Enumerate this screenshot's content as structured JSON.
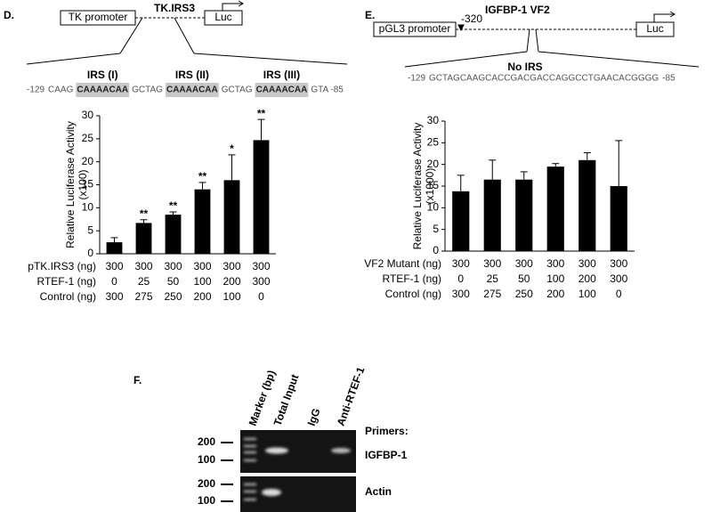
{
  "panel_d": {
    "label": "D.",
    "diagram": {
      "promoter": "TK promoter",
      "construct": "TK.IRS3",
      "reporter": "Luc",
      "sequence": [
        {
          "text": "-129"
        },
        {
          "text": "CAAG"
        },
        {
          "text": "CAAAACAA",
          "label": "IRS (I)"
        },
        {
          "text": "GCTAG"
        },
        {
          "text": "CAAAACAA",
          "label": "IRS (II)"
        },
        {
          "text": "GCTAG"
        },
        {
          "text": "CAAAACAA",
          "label": "IRS (III)"
        },
        {
          "text": "GTA -85"
        }
      ]
    }
  },
  "panel_e": {
    "label": "E.",
    "diagram": {
      "promoter": "pGL3 promoter",
      "position": "-320",
      "construct": "IGFBP-1 VF2",
      "reporter": "Luc",
      "note": "No IRS",
      "sequence": [
        {
          "text": "-129"
        },
        {
          "text": "GCTAGCAAGCACCGACGACCAGGCCTGAACACGGGG"
        },
        {
          "text": "-85"
        }
      ]
    }
  },
  "chart_data": [
    {
      "type": "bar",
      "y_label": [
        "Relative Luciferase Activity",
        "(x100)"
      ],
      "color": "#000000",
      "values": [
        2.5,
        6.7,
        8.5,
        14,
        16,
        24.7
      ],
      "errors": [
        1,
        0.7,
        0.6,
        1.5,
        5.5,
        4.5
      ],
      "significance": [
        null,
        "**",
        "**",
        "**",
        "*",
        "**"
      ],
      "ylim": [
        0,
        30
      ],
      "yticks": [
        0,
        5,
        10,
        15,
        20,
        25,
        30
      ],
      "table_rows": [
        {
          "label": "pTK.IRS3 (ng)",
          "values": [
            300,
            300,
            300,
            300,
            300,
            300
          ]
        },
        {
          "label": "RTEF-1 (ng)",
          "values": [
            0,
            25,
            50,
            100,
            200,
            300
          ]
        },
        {
          "label": "Control (ng)",
          "values": [
            300,
            275,
            250,
            200,
            100,
            0
          ]
        }
      ]
    },
    {
      "type": "bar",
      "y_label": [
        "Relative Luciferase Activity",
        "(x1000)"
      ],
      "color": "#000000",
      "values": [
        13.8,
        16.5,
        16.5,
        19.5,
        21,
        15
      ],
      "errors": [
        3.7,
        4.5,
        1.8,
        0.7,
        1.7,
        10.5
      ],
      "ylim": [
        0,
        30
      ],
      "yticks": [
        0,
        5,
        10,
        15,
        20,
        25,
        30
      ],
      "table_rows": [
        {
          "label": "VF2 Mutant (ng)",
          "values": [
            300,
            300,
            300,
            300,
            300,
            300
          ]
        },
        {
          "label": "RTEF-1 (ng)",
          "values": [
            0,
            25,
            50,
            100,
            200,
            300
          ]
        },
        {
          "label": "Control (ng)",
          "values": [
            300,
            275,
            250,
            200,
            100,
            0
          ]
        }
      ]
    }
  ],
  "panel_f": {
    "label": "F.",
    "lanes": [
      "Marker (bp)",
      "Total Input",
      "IgG",
      "Anti-RTEF-1"
    ],
    "primers_title": "Primers:",
    "primers": [
      "IGFBP-1",
      "Actin"
    ],
    "size_labels": [
      "200",
      "100"
    ]
  }
}
